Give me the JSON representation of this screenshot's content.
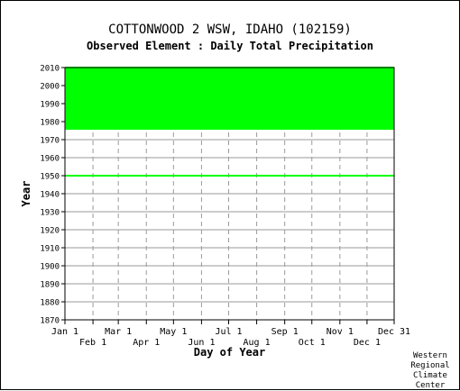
{
  "chart_data": {
    "type": "heatmap",
    "title": "COTTONWOOD 2 WSW, IDAHO   (102159)",
    "subtitle": "Observed Element : Daily Total Precipitation",
    "xlabel": "Day of Year",
    "ylabel": "Year",
    "x_range": [
      1,
      365
    ],
    "ylim": [
      1870,
      2010
    ],
    "y_ticks": [
      1870,
      1880,
      1890,
      1900,
      1910,
      1920,
      1930,
      1940,
      1950,
      1960,
      1970,
      1980,
      1990,
      2000,
      2010
    ],
    "x_ticks_top_row": [
      {
        "label": "Jan 1",
        "day": 1
      },
      {
        "label": "Mar 1",
        "day": 60
      },
      {
        "label": "May 1",
        "day": 121
      },
      {
        "label": "Jul 1",
        "day": 182
      },
      {
        "label": "Sep 1",
        "day": 244
      },
      {
        "label": "Nov 1",
        "day": 305
      },
      {
        "label": "Dec 31",
        "day": 365
      }
    ],
    "x_ticks_bottom_row": [
      {
        "label": "Feb 1",
        "day": 32
      },
      {
        "label": "Apr 1",
        "day": 91
      },
      {
        "label": "Jun 1",
        "day": 152
      },
      {
        "label": "Aug 1",
        "day": 213
      },
      {
        "label": "Oct 1",
        "day": 274
      },
      {
        "label": "Dec 1",
        "day": 335
      }
    ],
    "grid": true,
    "data_color": "#00ff00",
    "coverage": [
      {
        "start_day": 1,
        "end_day": 365,
        "start_year": 1976,
        "end_year": 2010,
        "note": "continuous"
      },
      {
        "start_day": 1,
        "end_day": 365,
        "start_year": 1950,
        "end_year": 1950,
        "note": "single year"
      }
    ]
  },
  "credit": [
    "Western",
    "Regional",
    "Climate",
    "Center"
  ]
}
